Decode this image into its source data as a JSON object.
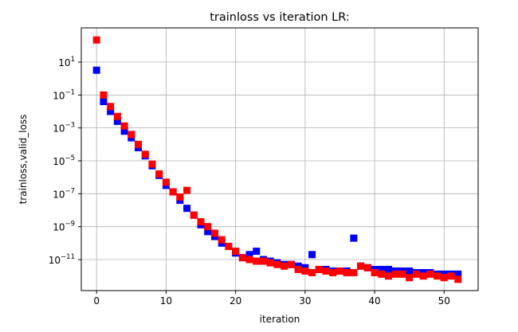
{
  "chart_data": {
    "type": "scatter",
    "title": "trainloss vs iteration LR:",
    "xlabel": "iteration",
    "ylabel": "trainloss,valid_loss",
    "xlim": [
      -2.2,
      54.9
    ],
    "ylim": [
      1.3e-13,
      1200.0
    ],
    "yscale": "log",
    "grid": true,
    "x_ticks": [
      0,
      10,
      20,
      30,
      40,
      50
    ],
    "y_ticks": [
      {
        "base": "10",
        "exp": "1"
      },
      {
        "base": "10",
        "exp": "−1"
      },
      {
        "base": "10",
        "exp": "−3"
      },
      {
        "base": "10",
        "exp": "−5"
      },
      {
        "base": "10",
        "exp": "−7"
      },
      {
        "base": "10",
        "exp": "−9"
      },
      {
        "base": "10",
        "exp": "−11"
      }
    ],
    "y_tick_values": [
      10.0,
      0.1,
      0.001,
      1e-05,
      1e-07,
      1e-09,
      1e-11
    ],
    "marker": "square",
    "series": [
      {
        "color": "#0000ff",
        "x": [
          0,
          1,
          2,
          3,
          4,
          5,
          6,
          7,
          8,
          9,
          10,
          11,
          12,
          13,
          14,
          15,
          16,
          17,
          18,
          19,
          20,
          21,
          22,
          23,
          24,
          25,
          26,
          27,
          28,
          29,
          30,
          31,
          32,
          33,
          34,
          35,
          36,
          37,
          38,
          39,
          40,
          41,
          42,
          43,
          44,
          45,
          46,
          47,
          48,
          49,
          50,
          51,
          52
        ],
        "y": [
          3.2,
          0.04,
          0.01,
          0.0025,
          0.00063,
          0.00025,
          6.3e-05,
          2e-05,
          5e-06,
          1.3e-06,
          3.2e-07,
          1.3e-07,
          4e-08,
          1.3e-08,
          5e-09,
          1.3e-09,
          5e-10,
          2.5e-10,
          1e-10,
          6.3e-11,
          2.5e-11,
          1.3e-11,
          2e-11,
          3.2e-11,
          1e-11,
          8e-12,
          6.3e-12,
          5e-12,
          5e-12,
          4e-12,
          3.2e-12,
          2e-11,
          2.5e-12,
          2.5e-12,
          2e-12,
          2e-12,
          2e-12,
          2e-10,
          4e-12,
          3.2e-12,
          2.5e-12,
          2.5e-12,
          2.5e-12,
          2e-12,
          2e-12,
          2e-12,
          1.6e-12,
          1.6e-12,
          1.6e-12,
          1.3e-12,
          1.3e-12,
          1.3e-12,
          1.3e-12
        ]
      },
      {
        "color": "#ff0000",
        "x": [
          0,
          1,
          2,
          3,
          4,
          5,
          6,
          7,
          8,
          9,
          10,
          11,
          12,
          13,
          14,
          15,
          16,
          17,
          18,
          19,
          20,
          21,
          22,
          23,
          24,
          25,
          26,
          27,
          28,
          29,
          30,
          31,
          32,
          33,
          34,
          35,
          36,
          37,
          38,
          39,
          40,
          41,
          42,
          43,
          44,
          45,
          46,
          47,
          48,
          49,
          50,
          51,
          52
        ],
        "y": [
          220.0,
          0.1,
          0.02,
          0.005,
          0.0013,
          0.0004,
          0.0001,
          2.5e-05,
          6.3e-06,
          1.6e-06,
          5e-07,
          1.3e-07,
          6.3e-08,
          1.6e-07,
          5e-09,
          2e-09,
          1e-09,
          4e-10,
          1.6e-10,
          6.3e-11,
          3.2e-11,
          1.3e-11,
          1e-11,
          8e-12,
          8e-12,
          6.3e-12,
          5e-12,
          4e-12,
          5e-12,
          2.5e-12,
          2e-12,
          1.6e-12,
          2.5e-12,
          2e-12,
          1.6e-12,
          2e-12,
          1.6e-12,
          1.6e-12,
          4e-12,
          3.2e-12,
          1.6e-12,
          1.3e-12,
          1e-12,
          1.3e-12,
          1.3e-12,
          8e-13,
          1.3e-12,
          1e-12,
          1.3e-12,
          1e-12,
          8e-13,
          1e-12,
          6.3e-13
        ]
      }
    ]
  }
}
